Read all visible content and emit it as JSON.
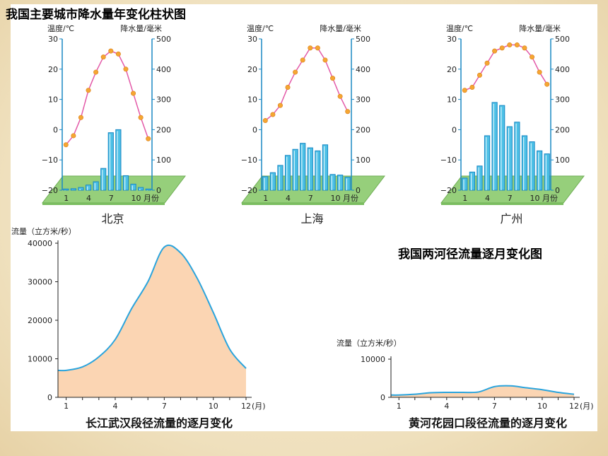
{
  "page_title": "我国主要城市降水量年变化柱状图",
  "flow_title": "我国两河径流量逐月变化图",
  "climate_charts": [
    {
      "type": "bar",
      "city": "北京",
      "left_axis_label": "温度/℃",
      "right_axis_label": "降水量/毫米",
      "temp_ylim": [
        -20,
        30
      ],
      "precip_ylim": [
        0,
        500
      ],
      "temp_ticks": [
        "30",
        "20",
        "10",
        "0",
        "−10",
        "−20"
      ],
      "precip_ticks": [
        "500",
        "400",
        "300",
        "200",
        "100",
        "0"
      ],
      "x_ticks": [
        "1",
        "4",
        "7",
        "10 月份"
      ],
      "months": [
        1,
        2,
        3,
        4,
        5,
        6,
        7,
        8,
        9,
        10,
        11,
        12
      ],
      "temperature": [
        -5,
        -2,
        4,
        13,
        19,
        24,
        26,
        25,
        20,
        12,
        4,
        -3
      ],
      "precipitation": [
        4,
        5,
        9,
        17,
        28,
        72,
        190,
        200,
        48,
        20,
        9,
        4
      ]
    },
    {
      "type": "bar",
      "city": "上海",
      "left_axis_label": "温度/℃",
      "right_axis_label": "降水量/毫米",
      "temp_ylim": [
        -20,
        30
      ],
      "precip_ylim": [
        0,
        500
      ],
      "temp_ticks": [
        "30",
        "20",
        "10",
        "0",
        "−10",
        "−20"
      ],
      "precip_ticks": [
        "500",
        "400",
        "300",
        "200",
        "100",
        "0"
      ],
      "x_ticks": [
        "1",
        "4",
        "7",
        "10 月份"
      ],
      "months": [
        1,
        2,
        3,
        4,
        5,
        6,
        7,
        8,
        9,
        10,
        11,
        12
      ],
      "temperature": [
        3,
        5,
        8,
        14,
        19,
        23,
        27,
        27,
        23,
        17,
        11,
        6
      ],
      "precipitation": [
        45,
        58,
        82,
        115,
        135,
        155,
        140,
        130,
        150,
        52,
        50,
        43
      ]
    },
    {
      "type": "bar",
      "city": "广州",
      "left_axis_label": "温度/℃",
      "right_axis_label": "降水量/毫米",
      "temp_ylim": [
        -20,
        30
      ],
      "precip_ylim": [
        0,
        500
      ],
      "temp_ticks": [
        "30",
        "20",
        "10",
        "0",
        "−10",
        "−20"
      ],
      "precip_ticks": [
        "500",
        "400",
        "300",
        "200",
        "100",
        "0"
      ],
      "x_ticks": [
        "1",
        "4",
        "7",
        "10 月份"
      ],
      "months": [
        1,
        2,
        3,
        4,
        5,
        6,
        7,
        8,
        9,
        10,
        11,
        12
      ],
      "temperature": [
        13,
        14,
        18,
        22,
        26,
        27,
        28,
        28,
        27,
        24,
        19,
        15
      ],
      "precipitation": [
        40,
        60,
        80,
        180,
        290,
        280,
        210,
        225,
        180,
        160,
        130,
        120
      ]
    }
  ],
  "flow_charts": [
    {
      "type": "area",
      "title": "长江武汉段径流量的逐月变化",
      "ylabel": "流量（立方米/秒）",
      "x_unit": "(月)",
      "x_ticks": [
        "1",
        "4",
        "7",
        "10",
        "12"
      ],
      "y_ticks": [
        "40000",
        "30000",
        "20000",
        "10000",
        "0"
      ],
      "ylim": [
        0,
        40000
      ],
      "months": [
        1,
        2,
        3,
        4,
        5,
        6,
        7,
        8,
        9,
        10,
        11,
        12
      ],
      "values": [
        7000,
        7900,
        10500,
        15000,
        23000,
        30000,
        39000,
        37500,
        31000,
        22000,
        12500,
        7500
      ]
    },
    {
      "type": "area",
      "title": "黄河花园口段径流量的逐月变化",
      "ylabel": "流量（立方米/秒）",
      "x_unit": "(月)",
      "x_ticks": [
        "1",
        "4",
        "7",
        "10",
        "12"
      ],
      "y_ticks": [
        "10000",
        "0"
      ],
      "ylim": [
        0,
        10000
      ],
      "months": [
        1,
        2,
        3,
        4,
        5,
        6,
        7,
        8,
        9,
        10,
        11,
        12
      ],
      "values": [
        600,
        800,
        1200,
        1300,
        1300,
        1400,
        2800,
        3000,
        2500,
        2000,
        1300,
        800
      ]
    }
  ],
  "colors": {
    "bar": "#4cc0e6",
    "bar_stroke": "#1a88c4",
    "temp_line": "#e35aa8",
    "temp_point": "#f5a632",
    "base": "#96cf7b",
    "axis_blue": "#1a88c4",
    "area_fill": "#fbd5b3",
    "area_line": "#2aa4dd"
  }
}
